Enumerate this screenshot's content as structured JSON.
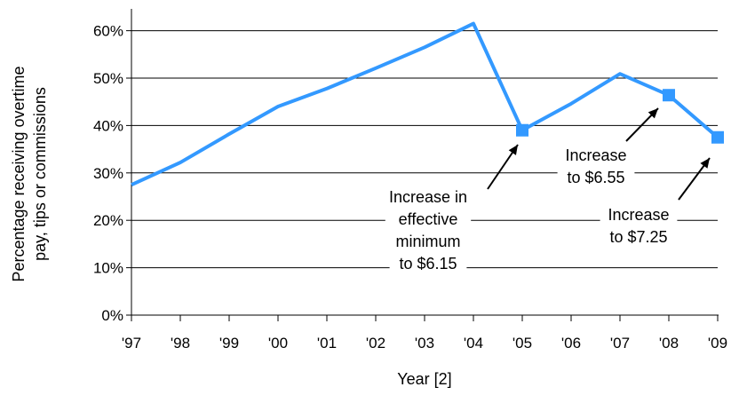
{
  "chart_data": {
    "type": "line",
    "title": "",
    "xlabel": "Year [2]",
    "ylabel_lines": [
      "Percentage receiving overtime",
      "pay, tips or commissions"
    ],
    "categories": [
      "'97",
      "'98",
      "'99",
      "'00",
      "'01",
      "'02",
      "'03",
      "'04",
      "'05",
      "'06",
      "'07",
      "'08",
      "'09"
    ],
    "values": [
      27.5,
      32.2,
      38.2,
      44.0,
      47.8,
      52.1,
      56.5,
      61.5,
      39.0,
      44.6,
      50.9,
      46.4,
      37.5
    ],
    "ylim": [
      0,
      65
    ],
    "yticks": [
      0,
      10,
      20,
      30,
      40,
      50,
      60
    ],
    "ytick_labels": [
      "0%",
      "10%",
      "20%",
      "30%",
      "40%",
      "50%",
      "60%"
    ],
    "grid": true,
    "line_color": "#3399ff",
    "marked_points": [
      8,
      11,
      12
    ],
    "annotations": [
      {
        "lines": [
          "Increase in",
          "effective",
          "minimum",
          "to $6.15"
        ],
        "points_to": "'05"
      },
      {
        "lines": [
          "Increase",
          "to $6.55"
        ],
        "points_to": "'08"
      },
      {
        "lines": [
          "Increase",
          "to $7.25"
        ],
        "points_to": "'09"
      }
    ]
  }
}
